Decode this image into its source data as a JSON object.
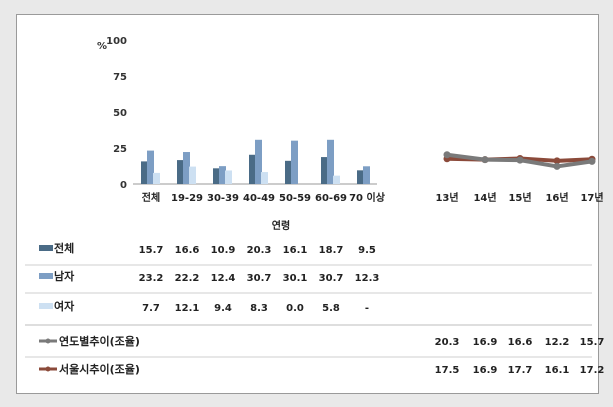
{
  "chart_data": {
    "type": "bar",
    "ylabel": "%",
    "ylim": [
      0,
      100
    ],
    "yticks": [
      0,
      25,
      50,
      75,
      100
    ],
    "xlabel": "연령",
    "categories": [
      "전체",
      "19-29",
      "30-39",
      "40-49",
      "50-59",
      "60-69",
      "70 이상"
    ],
    "series": [
      {
        "name": "전체",
        "color": "#4a6b86",
        "values": [
          15.7,
          16.6,
          10.9,
          20.3,
          16.1,
          18.7,
          9.5
        ],
        "labels": [
          "15.7",
          "16.6",
          "10.9",
          "20.3",
          "16.1",
          "18.7",
          "9.5"
        ]
      },
      {
        "name": "남자",
        "color": "#7d9ec4",
        "values": [
          23.2,
          22.2,
          12.4,
          30.7,
          30.1,
          30.7,
          12.3
        ],
        "labels": [
          "23.2",
          "22.2",
          "12.4",
          "30.7",
          "30.1",
          "30.7",
          "12.3"
        ]
      },
      {
        "name": "여자",
        "color": "#cde0f2",
        "values": [
          7.7,
          12.1,
          9.4,
          8.3,
          0.0,
          5.8,
          null
        ],
        "labels": [
          "7.7",
          "12.1",
          "9.4",
          "8.3",
          "0.0",
          "5.8",
          "-"
        ]
      }
    ],
    "trend": {
      "type": "line",
      "categories": [
        "13년",
        "14년",
        "15년",
        "16년",
        "17년"
      ],
      "series": [
        {
          "name": "연도별추이(조율)",
          "color": "#7a7a7a",
          "values": [
            20.3,
            16.9,
            16.6,
            12.2,
            15.7
          ],
          "labels": [
            "20.3",
            "16.9",
            "16.6",
            "12.2",
            "15.7"
          ]
        },
        {
          "name": "서울시추이(조율)",
          "color": "#8b4a3a",
          "values": [
            17.5,
            16.9,
            17.7,
            16.1,
            17.2
          ],
          "labels": [
            "17.5",
            "16.9",
            "17.7",
            "16.1",
            "17.2"
          ]
        }
      ]
    }
  }
}
